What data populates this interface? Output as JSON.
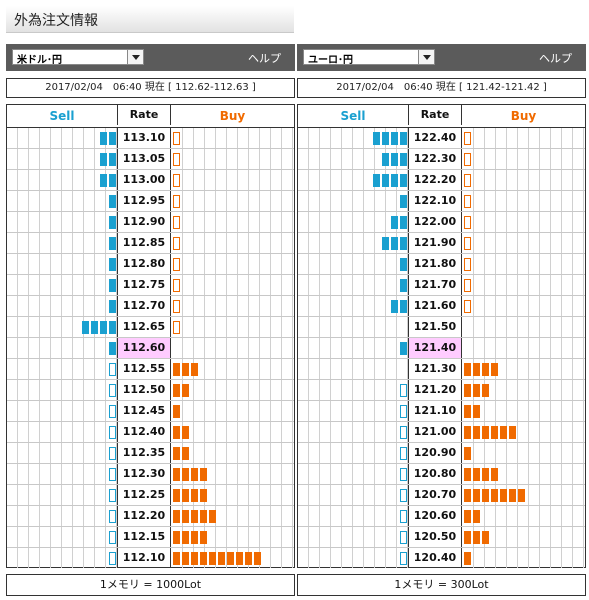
{
  "page": {
    "title": "外為注文情報"
  },
  "panels": [
    {
      "id": "usdjpy",
      "pair": "米ドル･円",
      "help": "ヘルプ",
      "timestamp": "2017/02/04　06:40 現在 [ 112.62-112.63 ]",
      "headers": {
        "sell": "Sell",
        "rate": "Rate",
        "buy": "Buy"
      },
      "footer": "1メモリ = 1000Lot",
      "rows": [
        {
          "rate": "113.10",
          "sell": 2,
          "buy": 0,
          "sell_outline": false,
          "buy_outline": true,
          "current": false
        },
        {
          "rate": "113.05",
          "sell": 2,
          "buy": 0,
          "sell_outline": false,
          "buy_outline": true,
          "current": false
        },
        {
          "rate": "113.00",
          "sell": 2,
          "buy": 0,
          "sell_outline": false,
          "buy_outline": true,
          "current": false
        },
        {
          "rate": "112.95",
          "sell": 1,
          "buy": 0,
          "sell_outline": false,
          "buy_outline": true,
          "current": false
        },
        {
          "rate": "112.90",
          "sell": 1,
          "buy": 0,
          "sell_outline": false,
          "buy_outline": true,
          "current": false
        },
        {
          "rate": "112.85",
          "sell": 1,
          "buy": 0,
          "sell_outline": false,
          "buy_outline": true,
          "current": false
        },
        {
          "rate": "112.80",
          "sell": 1,
          "buy": 0,
          "sell_outline": false,
          "buy_outline": true,
          "current": false
        },
        {
          "rate": "112.75",
          "sell": 1,
          "buy": 0,
          "sell_outline": false,
          "buy_outline": true,
          "current": false
        },
        {
          "rate": "112.70",
          "sell": 1,
          "buy": 0,
          "sell_outline": false,
          "buy_outline": true,
          "current": false
        },
        {
          "rate": "112.65",
          "sell": 4,
          "buy": 0,
          "sell_outline": false,
          "buy_outline": true,
          "current": false
        },
        {
          "rate": "112.60",
          "sell": 1,
          "buy": 0,
          "sell_outline": false,
          "buy_outline": false,
          "current": true
        },
        {
          "rate": "112.55",
          "sell": 0,
          "buy": 3,
          "sell_outline": true,
          "buy_outline": false,
          "current": false
        },
        {
          "rate": "112.50",
          "sell": 0,
          "buy": 2,
          "sell_outline": true,
          "buy_outline": false,
          "current": false
        },
        {
          "rate": "112.45",
          "sell": 0,
          "buy": 1,
          "sell_outline": true,
          "buy_outline": false,
          "current": false
        },
        {
          "rate": "112.40",
          "sell": 0,
          "buy": 2,
          "sell_outline": true,
          "buy_outline": false,
          "current": false
        },
        {
          "rate": "112.35",
          "sell": 0,
          "buy": 2,
          "sell_outline": true,
          "buy_outline": false,
          "current": false
        },
        {
          "rate": "112.30",
          "sell": 0,
          "buy": 4,
          "sell_outline": true,
          "buy_outline": false,
          "current": false
        },
        {
          "rate": "112.25",
          "sell": 0,
          "buy": 4,
          "sell_outline": true,
          "buy_outline": false,
          "current": false
        },
        {
          "rate": "112.20",
          "sell": 0,
          "buy": 5,
          "sell_outline": true,
          "buy_outline": false,
          "current": false
        },
        {
          "rate": "112.15",
          "sell": 0,
          "buy": 4,
          "sell_outline": true,
          "buy_outline": false,
          "current": false
        },
        {
          "rate": "112.10",
          "sell": 0,
          "buy": 10,
          "sell_outline": true,
          "buy_outline": false,
          "current": false
        }
      ]
    },
    {
      "id": "eurjpy",
      "pair": "ユーロ･円",
      "help": "ヘルプ",
      "timestamp": "2017/02/04　06:40 現在 [ 121.42-121.42 ]",
      "headers": {
        "sell": "Sell",
        "rate": "Rate",
        "buy": "Buy"
      },
      "footer": "1メモリ = 300Lot",
      "rows": [
        {
          "rate": "122.40",
          "sell": 4,
          "buy": 0,
          "sell_outline": false,
          "buy_outline": true,
          "current": false
        },
        {
          "rate": "122.30",
          "sell": 3,
          "buy": 0,
          "sell_outline": false,
          "buy_outline": true,
          "current": false
        },
        {
          "rate": "122.20",
          "sell": 4,
          "buy": 0,
          "sell_outline": false,
          "buy_outline": true,
          "current": false
        },
        {
          "rate": "122.10",
          "sell": 1,
          "buy": 0,
          "sell_outline": false,
          "buy_outline": true,
          "current": false
        },
        {
          "rate": "122.00",
          "sell": 2,
          "buy": 0,
          "sell_outline": false,
          "buy_outline": true,
          "current": false
        },
        {
          "rate": "121.90",
          "sell": 3,
          "buy": 0,
          "sell_outline": false,
          "buy_outline": true,
          "current": false
        },
        {
          "rate": "121.80",
          "sell": 1,
          "buy": 0,
          "sell_outline": false,
          "buy_outline": true,
          "current": false
        },
        {
          "rate": "121.70",
          "sell": 1,
          "buy": 0,
          "sell_outline": false,
          "buy_outline": true,
          "current": false
        },
        {
          "rate": "121.60",
          "sell": 2,
          "buy": 0,
          "sell_outline": false,
          "buy_outline": true,
          "current": false
        },
        {
          "rate": "121.50",
          "sell": 0,
          "buy": 0,
          "sell_outline": false,
          "buy_outline": false,
          "current": false
        },
        {
          "rate": "121.40",
          "sell": 1,
          "buy": 0,
          "sell_outline": false,
          "buy_outline": false,
          "current": true
        },
        {
          "rate": "121.30",
          "sell": 0,
          "buy": 4,
          "sell_outline": false,
          "buy_outline": false,
          "current": false
        },
        {
          "rate": "121.20",
          "sell": 0,
          "buy": 3,
          "sell_outline": true,
          "buy_outline": false,
          "current": false
        },
        {
          "rate": "121.10",
          "sell": 0,
          "buy": 2,
          "sell_outline": true,
          "buy_outline": false,
          "current": false
        },
        {
          "rate": "121.00",
          "sell": 0,
          "buy": 6,
          "sell_outline": true,
          "buy_outline": false,
          "current": false
        },
        {
          "rate": "120.90",
          "sell": 0,
          "buy": 1,
          "sell_outline": true,
          "buy_outline": false,
          "current": false
        },
        {
          "rate": "120.80",
          "sell": 0,
          "buy": 4,
          "sell_outline": true,
          "buy_outline": false,
          "current": false
        },
        {
          "rate": "120.70",
          "sell": 0,
          "buy": 7,
          "sell_outline": true,
          "buy_outline": false,
          "current": false
        },
        {
          "rate": "120.60",
          "sell": 0,
          "buy": 2,
          "sell_outline": true,
          "buy_outline": false,
          "current": false
        },
        {
          "rate": "120.50",
          "sell": 0,
          "buy": 3,
          "sell_outline": true,
          "buy_outline": false,
          "current": false
        },
        {
          "rate": "120.40",
          "sell": 0,
          "buy": 1,
          "sell_outline": true,
          "buy_outline": false,
          "current": false
        }
      ]
    }
  ]
}
